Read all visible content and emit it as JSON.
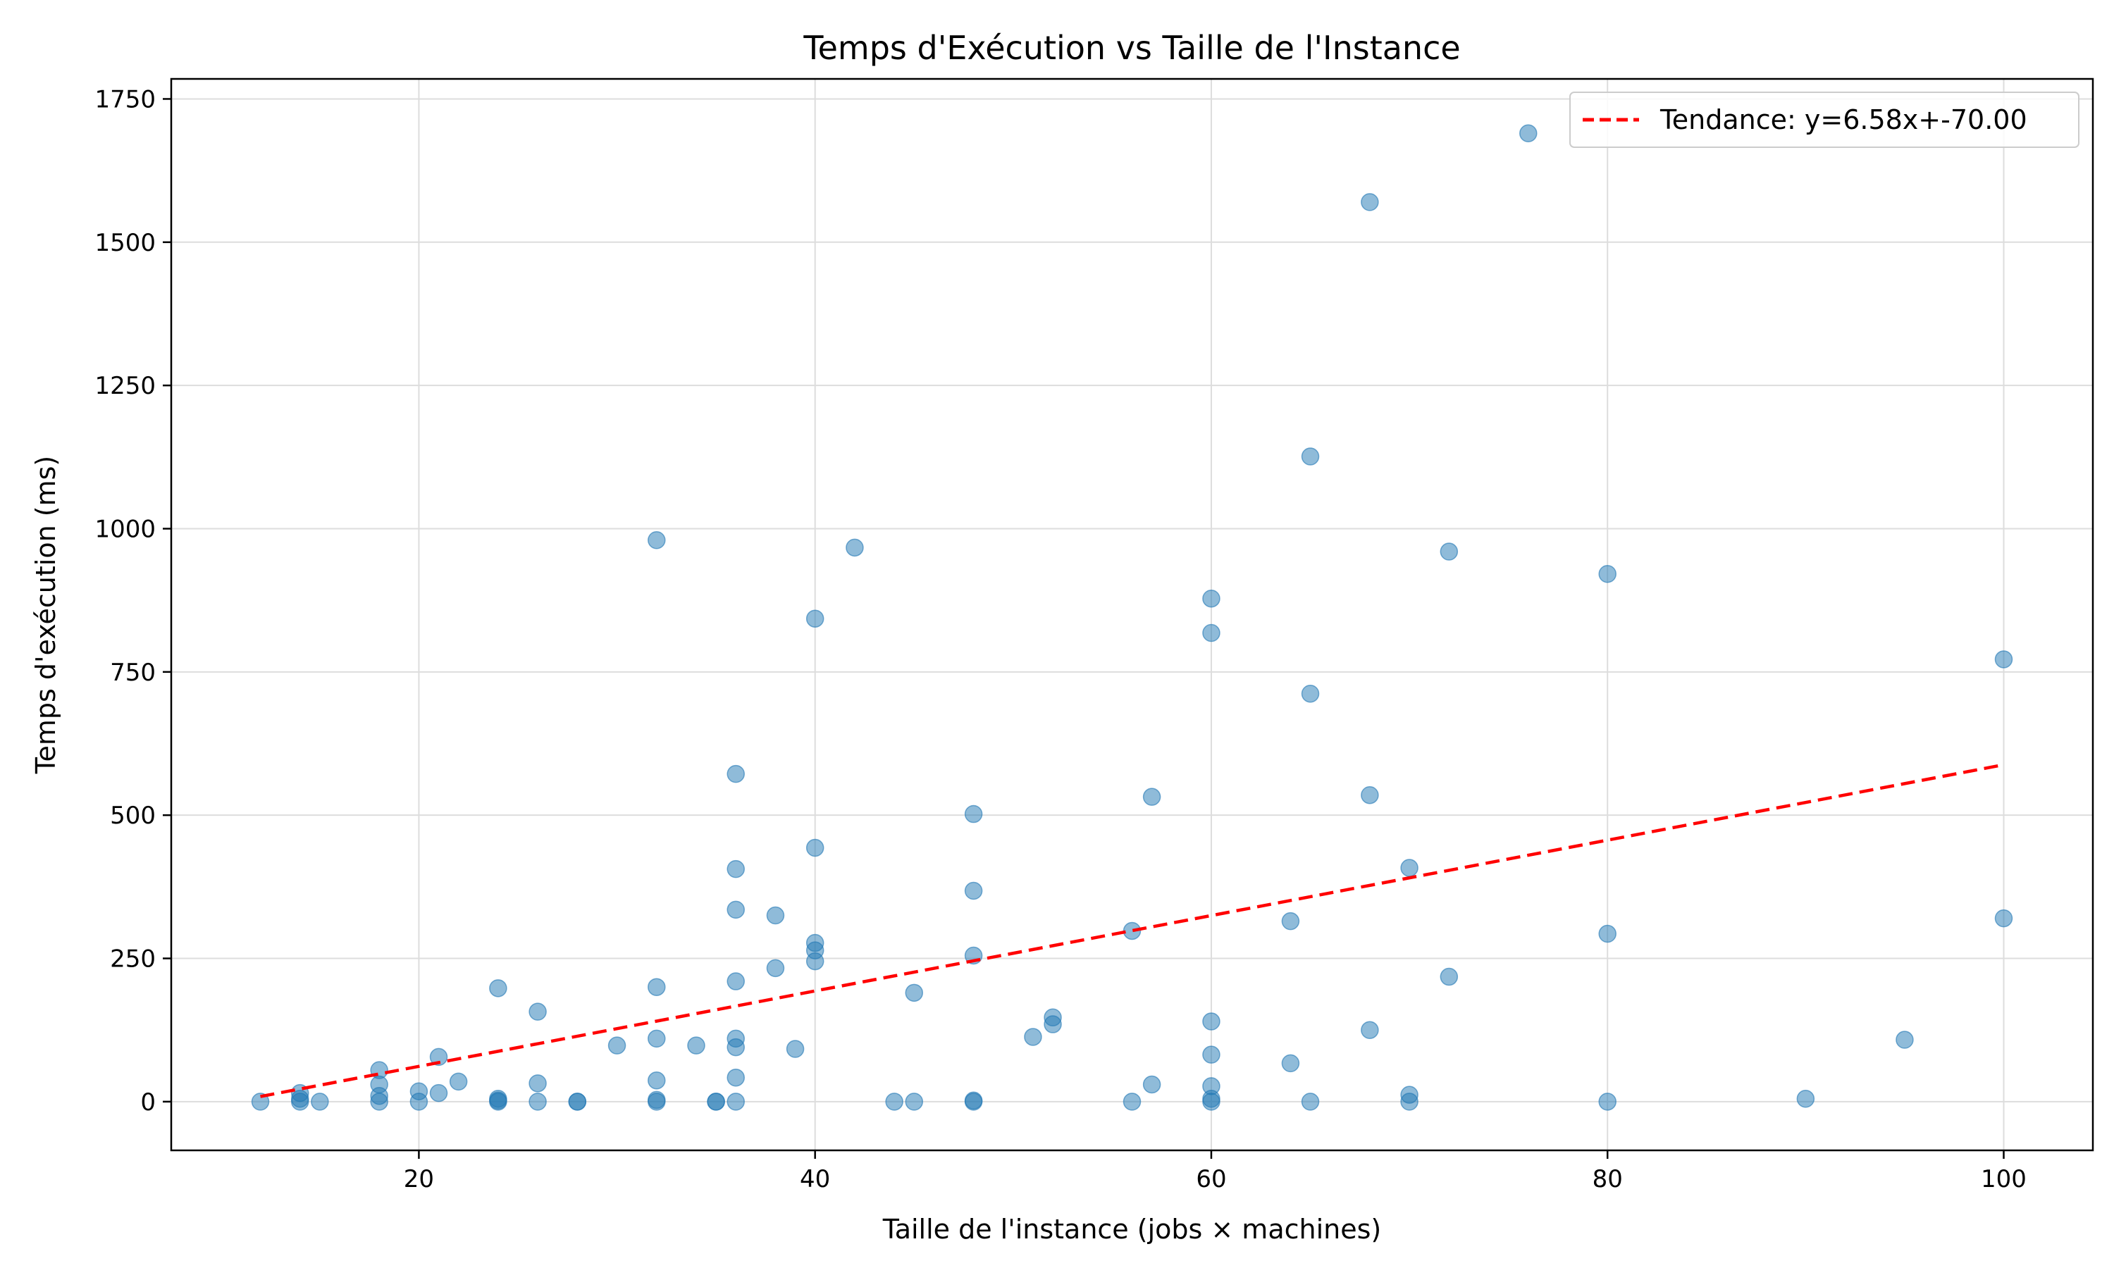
{
  "chart_data": {
    "type": "scatter",
    "title": "Temps d'Exécution vs Taille de l'Instance",
    "xlabel": "Taille de l'instance (jobs × machines)",
    "ylabel": "Temps d'exécution (ms)",
    "xlim": [
      7.5,
      104.5
    ],
    "ylim": [
      -85,
      1785
    ],
    "xticks": [
      20,
      40,
      60,
      80,
      100
    ],
    "yticks": [
      0,
      250,
      500,
      750,
      1000,
      1250,
      1500,
      1750
    ],
    "grid": true,
    "legend_position": "top-right",
    "colors": {
      "points": "#1f77b4",
      "trend": "#ff0000",
      "grid": "#dddddd"
    },
    "series": [
      {
        "kind": "points",
        "x": [
          12,
          14,
          14,
          14,
          15,
          18,
          18,
          18,
          18,
          20,
          20,
          21,
          21,
          22,
          24,
          24,
          24,
          24,
          26,
          26,
          26,
          28,
          28,
          30,
          32,
          32,
          32,
          32,
          32,
          32,
          34,
          35,
          35,
          36,
          36,
          36,
          36,
          36,
          36,
          36,
          36,
          38,
          38,
          39,
          40,
          40,
          40,
          40,
          40,
          42,
          44,
          45,
          45,
          48,
          48,
          48,
          48,
          48,
          51,
          52,
          52,
          56,
          56,
          57,
          57,
          60,
          60,
          60,
          60,
          60,
          60,
          60,
          64,
          64,
          65,
          65,
          65,
          68,
          68,
          68,
          70,
          70,
          70,
          72,
          72,
          76,
          80,
          80,
          80,
          90,
          95,
          100,
          100
        ],
        "y": [
          0,
          15,
          5,
          0,
          0,
          55,
          30,
          10,
          0,
          18,
          0,
          78,
          15,
          35,
          198,
          5,
          2,
          0,
          157,
          32,
          0,
          0,
          0,
          98,
          980,
          200,
          110,
          37,
          3,
          0,
          98,
          0,
          0,
          572,
          406,
          335,
          210,
          110,
          95,
          42,
          0,
          325,
          233,
          92,
          843,
          443,
          277,
          264,
          245,
          967,
          0,
          190,
          0,
          502,
          368,
          255,
          2,
          0,
          113,
          147,
          135,
          298,
          0,
          532,
          30,
          878,
          818,
          140,
          82,
          27,
          5,
          0,
          315,
          67,
          1126,
          712,
          0,
          1570,
          535,
          125,
          408,
          12,
          0,
          218,
          960,
          1690,
          921,
          293,
          0,
          5,
          108,
          772,
          320
        ]
      },
      {
        "kind": "trend",
        "name": "Tendance: y=6.58x+-70.00",
        "slope": 6.58,
        "intercept": -70.0,
        "x_range": [
          12,
          100
        ]
      }
    ]
  }
}
